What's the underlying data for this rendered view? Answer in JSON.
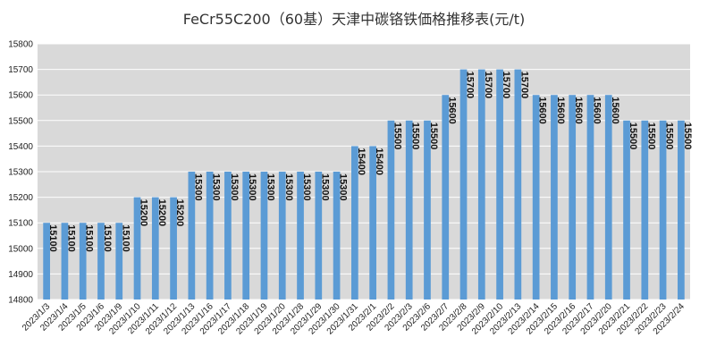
{
  "chart_data": {
    "type": "bar",
    "title": "FeCr55C200（60基）天津中碳铬铁価格推移表(元/t)",
    "xlabel": "",
    "ylabel": "",
    "ylim": [
      14800,
      15800
    ],
    "yticks": [
      14800,
      14900,
      15000,
      15100,
      15200,
      15300,
      15400,
      15500,
      15600,
      15700,
      15800
    ],
    "grid": true,
    "legend": "none",
    "bar_color": "#5b9bd5",
    "plot_background": "#d9d9d9",
    "categories": [
      "2023/1/3",
      "2023/1/4",
      "2023/1/5",
      "2023/1/6",
      "2023/1/9",
      "2023/1/10",
      "2023/1/11",
      "2023/1/12",
      "2023/1/13",
      "2023/1/16",
      "2023/1/17",
      "2023/1/18",
      "2023/1/19",
      "2023/1/20",
      "2023/1/28",
      "2023/1/29",
      "2023/1/30",
      "2023/1/31",
      "2023/2/1",
      "2023/2/2",
      "2023/2/3",
      "2023/2/6",
      "2023/2/7",
      "2023/2/8",
      "2023/2/9",
      "2023/2/10",
      "2023/2/13",
      "2023/2/14",
      "2023/2/15",
      "2023/2/16",
      "2023/2/17",
      "2023/2/20",
      "2023/2/21",
      "2023/2/22",
      "2023/2/23",
      "2023/2/24"
    ],
    "values": [
      15100,
      15100,
      15100,
      15100,
      15100,
      15200,
      15200,
      15200,
      15300,
      15300,
      15300,
      15300,
      15300,
      15300,
      15300,
      15300,
      15300,
      15400,
      15400,
      15500,
      15500,
      15500,
      15600,
      15700,
      15700,
      15700,
      15700,
      15600,
      15600,
      15600,
      15600,
      15600,
      15500,
      15500,
      15500,
      15500
    ]
  }
}
